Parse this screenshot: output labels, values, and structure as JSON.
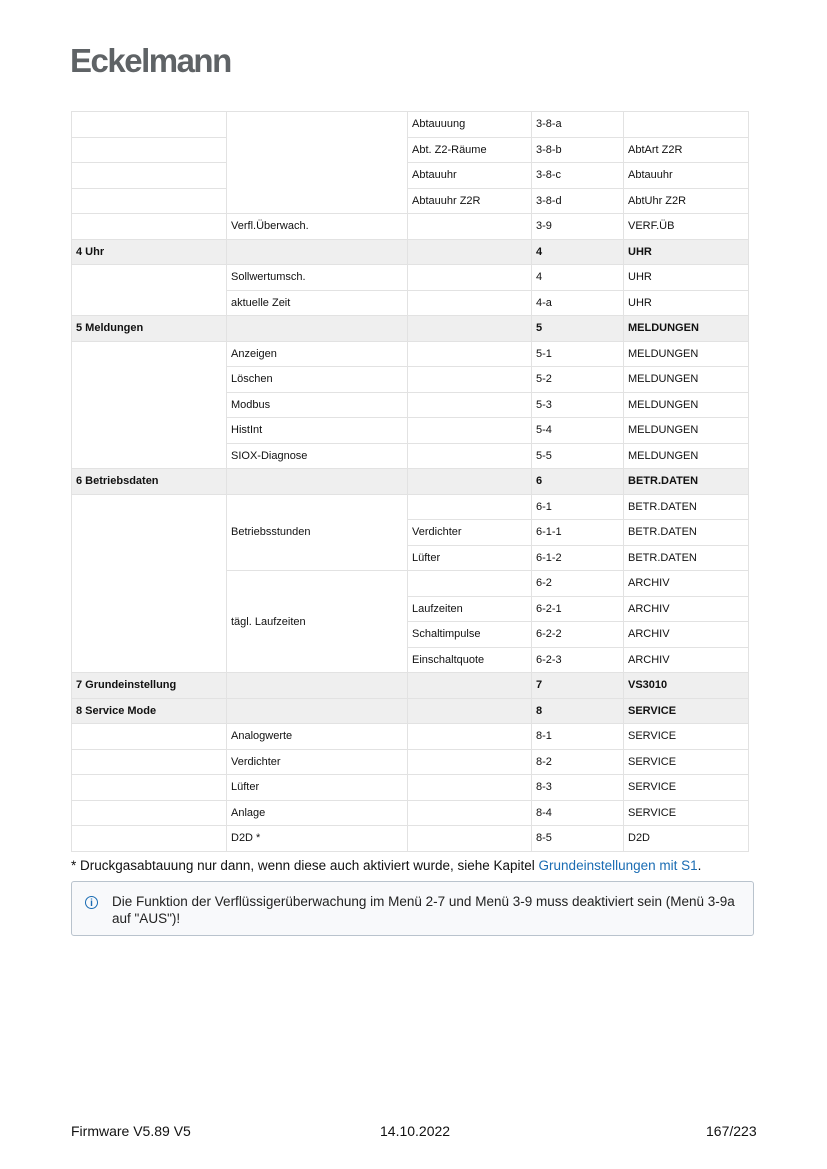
{
  "header": {
    "logo": "Eckelmann"
  },
  "table": {
    "rows": [
      [
        "",
        "",
        "Abtauuung",
        "3-8-a",
        ""
      ],
      [
        "",
        "Abt. Z2-Räume",
        "3-8-b",
        "AbtArt Z2R"
      ],
      [
        "",
        "Abtauuhr",
        "3-8-c",
        "Abtauuhr"
      ],
      [
        "",
        "Abtauuhr Z2R",
        "3-8-d",
        "AbtUhr Z2R"
      ],
      [
        "",
        "Verfl.Überwach.",
        "",
        "3-9",
        "VERF.ÜB"
      ],
      [
        "4 Uhr",
        "",
        "",
        "4",
        "UHR"
      ],
      [
        "",
        "Sollwertumsch.",
        "",
        "4",
        "UHR"
      ],
      [
        "aktuelle Zeit",
        "",
        "4-a",
        "UHR"
      ],
      [
        "5 Meldungen",
        "",
        "",
        "5",
        "MELDUNGEN"
      ],
      [
        "",
        "Anzeigen",
        "",
        "5-1",
        "MELDUNGEN"
      ],
      [
        "Löschen",
        "",
        "5-2",
        "MELDUNGEN"
      ],
      [
        "Modbus",
        "",
        "5-3",
        "MELDUNGEN"
      ],
      [
        "HistInt",
        "",
        "5-4",
        "MELDUNGEN"
      ],
      [
        "SIOX-Diagnose",
        "",
        "5-5",
        "MELDUNGEN"
      ],
      [
        "6 Betriebsdaten",
        "",
        "",
        "6",
        "BETR.DATEN"
      ],
      [
        "",
        "Betriebsstunden",
        "",
        "6-1",
        "BETR.DATEN"
      ],
      [
        "Verdichter",
        "6-1-1",
        "BETR.DATEN"
      ],
      [
        "Lüfter",
        "6-1-2",
        "BETR.DATEN"
      ],
      [
        "tägl. Laufzeiten",
        "",
        "6-2",
        "ARCHIV"
      ],
      [
        "Laufzeiten",
        "6-2-1",
        "ARCHIV"
      ],
      [
        "Schaltimpulse",
        "6-2-2",
        "ARCHIV"
      ],
      [
        "Einschaltquote",
        "6-2-3",
        "ARCHIV"
      ],
      [
        "7 Grundeinstellung",
        "",
        "",
        "7",
        "VS3010"
      ],
      [
        "8 Service Mode",
        "",
        "",
        "8",
        "SERVICE"
      ],
      [
        "",
        "Analogwerte",
        "",
        "8-1",
        "SERVICE"
      ],
      [
        "",
        "Verdichter",
        "",
        "8-2",
        "SERVICE"
      ],
      [
        "",
        "Lüfter",
        "",
        "8-3",
        "SERVICE"
      ],
      [
        "",
        "Anlage",
        "",
        "8-4",
        "SERVICE"
      ],
      [
        "",
        "D2D *",
        "",
        "8-5",
        "D2D"
      ]
    ]
  },
  "footnote": {
    "text": "* Druckgasabtauung nur dann, wenn diese auch aktiviert wurde, siehe Kapitel ",
    "link": "Grundeinstellungen mit S1",
    "end": "."
  },
  "note": {
    "icon": "info-icon",
    "text": "Die Funktion der Verflüssigerüberwachung im Menü 2-7 und Menü 3-9 muss deaktiviert sein (Menü 3-9a auf \"AUS\")!"
  },
  "footer": {
    "left": "Firmware V5.89 V5",
    "center": "14.10.2022",
    "right": "167/223"
  },
  "colors": {
    "link": "#1a6cb3",
    "header_row": "#efefef"
  }
}
